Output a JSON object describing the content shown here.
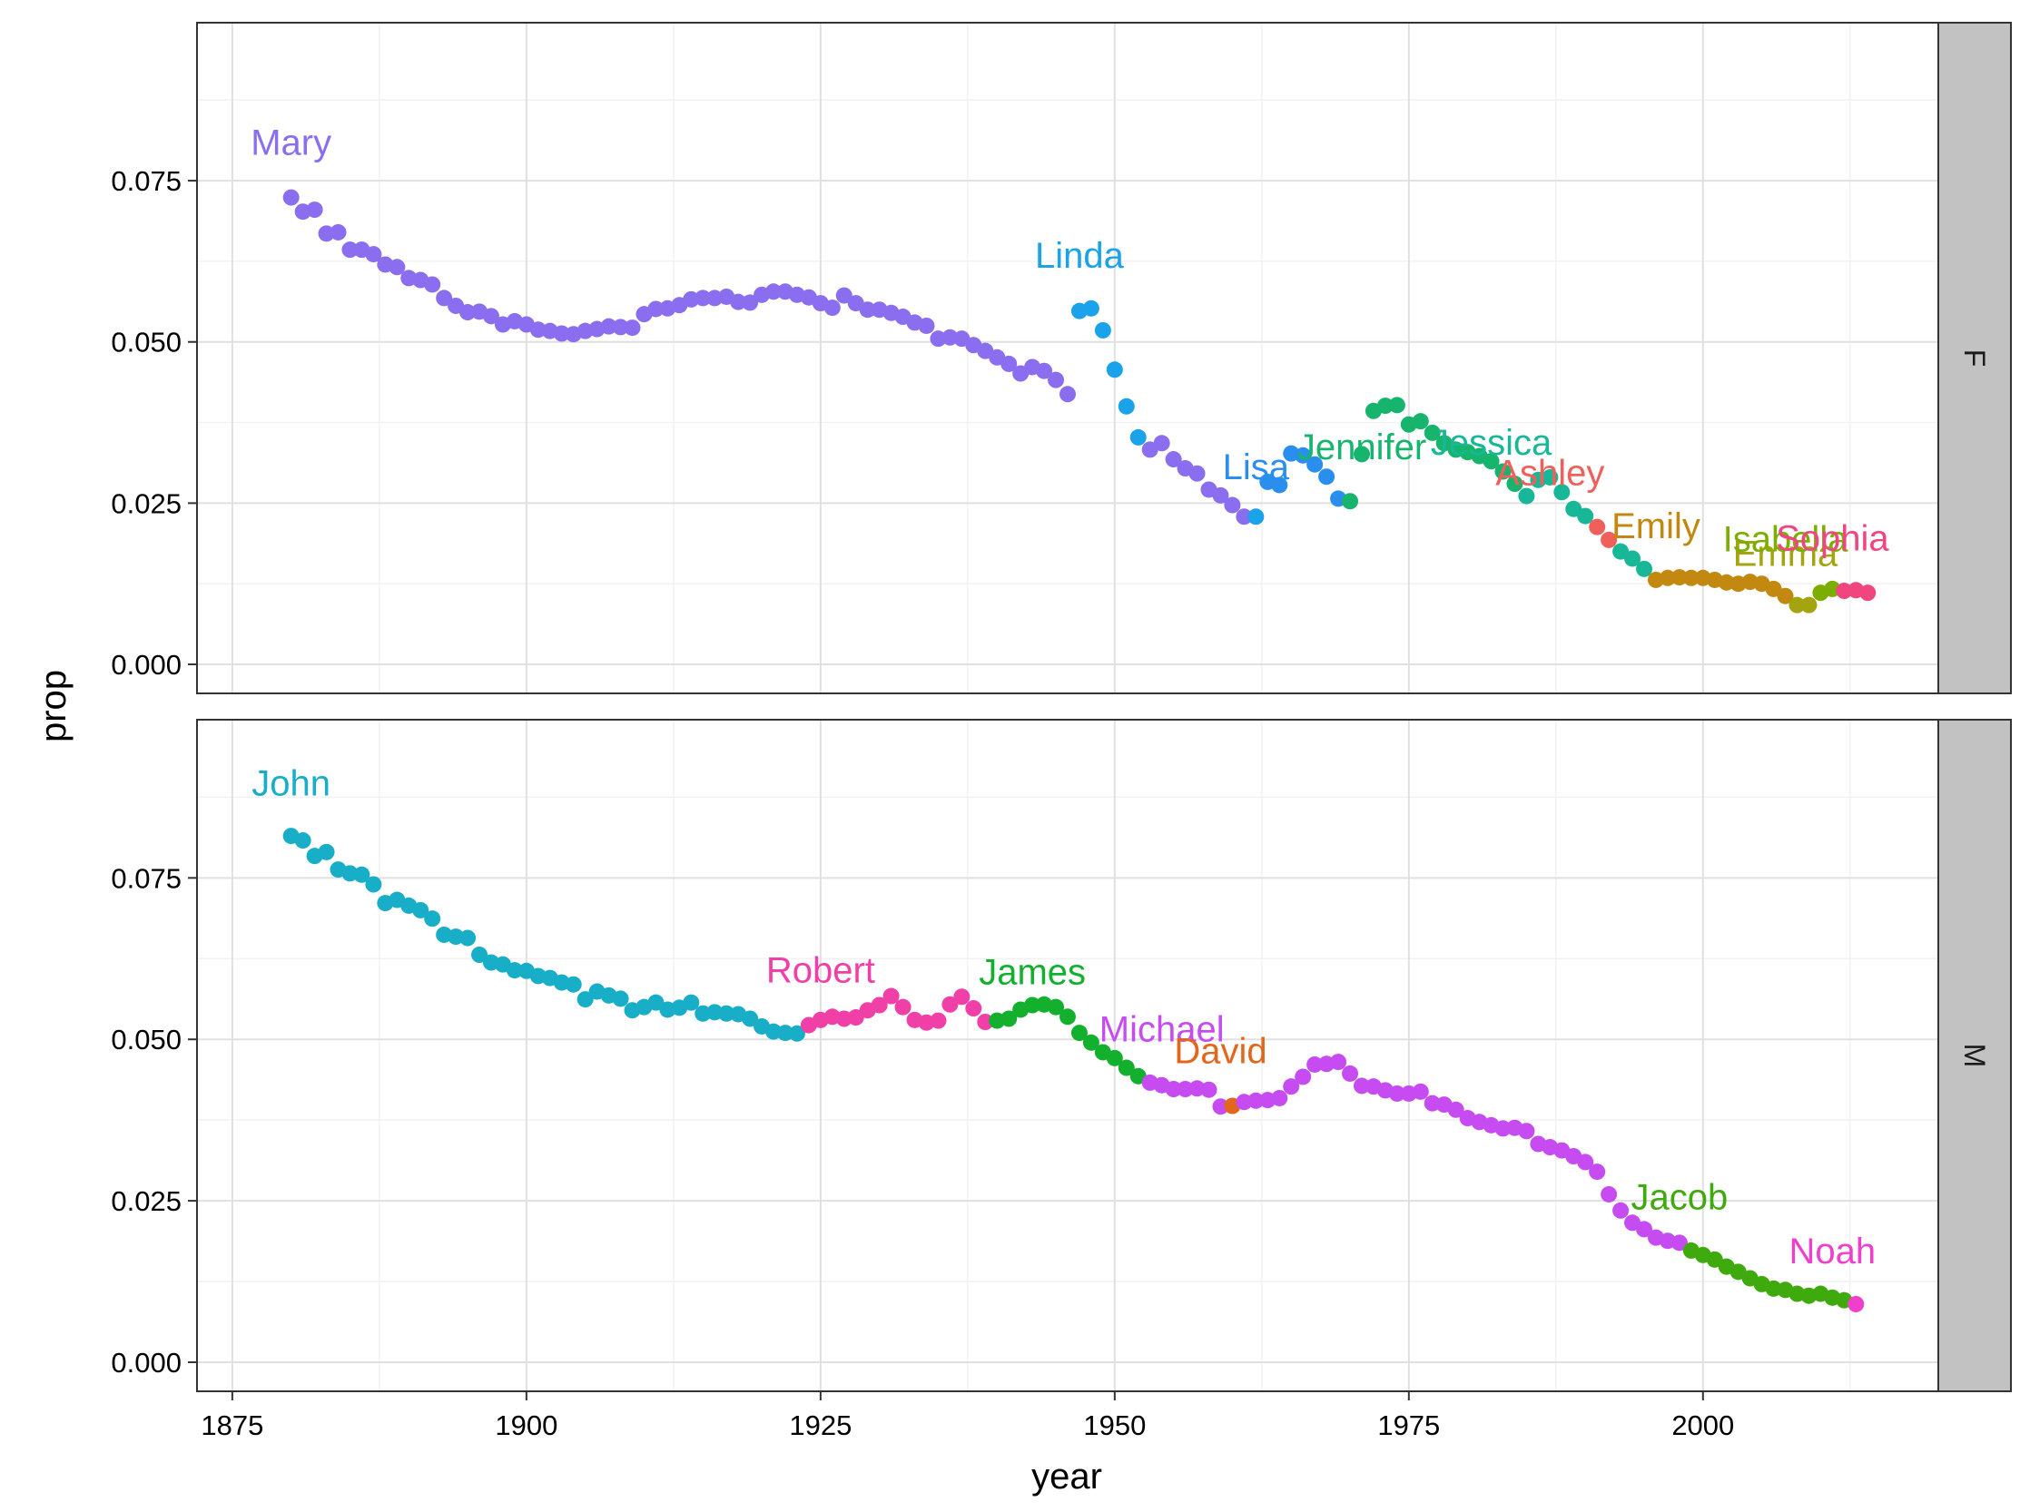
{
  "chart_data": {
    "type": "scatter",
    "xlabel": "year",
    "ylabel": "prop",
    "xlim": [
      1872,
      2020
    ],
    "ylim": [
      -0.0045,
      0.0995
    ],
    "x_ticks": [
      1875,
      1900,
      1925,
      1950,
      1975,
      2000
    ],
    "x_tick_labels": [
      "1875",
      "1900",
      "1925",
      "1950",
      "1975",
      "2000"
    ],
    "y_ticks": [
      0.0,
      0.025,
      0.05,
      0.075
    ],
    "y_tick_labels": [
      "0.000",
      "0.025",
      "0.050",
      "0.075"
    ],
    "grid": true,
    "legend": "none",
    "facets": [
      {
        "strip": "F",
        "series": [
          {
            "name": "Mary",
            "color": "#8B6EF0",
            "label_x": 1880,
            "label_y": 0.079,
            "x": [
              1880,
              1881,
              1882,
              1883,
              1884,
              1885,
              1886,
              1887,
              1888,
              1889,
              1890,
              1891,
              1892,
              1893,
              1894,
              1895,
              1896,
              1897,
              1898,
              1899,
              1900,
              1901,
              1902,
              1903,
              1904,
              1905,
              1906,
              1907,
              1908,
              1909,
              1910,
              1911,
              1912,
              1913,
              1914,
              1915,
              1916,
              1917,
              1918,
              1919,
              1920,
              1921,
              1922,
              1923,
              1924,
              1925,
              1926,
              1927,
              1928,
              1929,
              1930,
              1931,
              1932,
              1933,
              1934,
              1935,
              1936,
              1937,
              1938,
              1939,
              1940,
              1941,
              1942,
              1943,
              1944,
              1945,
              1946
            ],
            "y": [
              0.0724,
              0.0702,
              0.0705,
              0.0668,
              0.067,
              0.0643,
              0.0643,
              0.0636,
              0.062,
              0.0616,
              0.0599,
              0.0596,
              0.0589,
              0.0568,
              0.0556,
              0.0546,
              0.0547,
              0.054,
              0.0527,
              0.0532,
              0.0527,
              0.0519,
              0.0517,
              0.0513,
              0.0512,
              0.0517,
              0.052,
              0.0524,
              0.0523,
              0.0522,
              0.0543,
              0.0551,
              0.0552,
              0.0557,
              0.0566,
              0.0568,
              0.0568,
              0.057,
              0.0562,
              0.0561,
              0.0573,
              0.0578,
              0.0578,
              0.0573,
              0.0569,
              0.056,
              0.0553,
              0.0572,
              0.056,
              0.055,
              0.055,
              0.0545,
              0.0539,
              0.053,
              0.0525,
              0.0505,
              0.0507,
              0.0505,
              0.0495,
              0.0486,
              0.0476,
              0.0466,
              0.0451,
              0.0461,
              0.0455,
              0.0441,
              0.0419
            ]
          },
          {
            "name": "Linda",
            "color": "#1AA2EA",
            "label_x": 1947,
            "label_y": 0.0615,
            "x": [
              1947,
              1948,
              1949,
              1950,
              1951,
              1952
            ],
            "y": [
              0.0548,
              0.0552,
              0.0518,
              0.0457,
              0.04,
              0.0352
            ]
          },
          {
            "name": "Mary",
            "color": "#8B6EF0",
            "label_x": null,
            "label_y": null,
            "x": [
              1953,
              1954,
              1955,
              1956,
              1957,
              1958,
              1959,
              1960,
              1961
            ],
            "y": [
              0.0333,
              0.0343,
              0.0318,
              0.0304,
              0.0296,
              0.0271,
              0.0262,
              0.0247,
              0.0229
            ]
          },
          {
            "name": "Linda",
            "color": "#1AA2EA",
            "label_x": null,
            "label_y": null,
            "x": [
              1962
            ],
            "y": [
              0.0229
            ]
          },
          {
            "name": "Lisa",
            "color": "#2A8EEE",
            "label_x": 1962,
            "label_y": 0.0287,
            "x": [
              1963,
              1964,
              1965,
              1966,
              1967,
              1968,
              1969
            ],
            "y": [
              0.0283,
              0.0278,
              0.0327,
              0.0324,
              0.031,
              0.0291,
              0.0257
            ]
          },
          {
            "name": "Jennifer",
            "color": "#17B46E",
            "label_x": 1971,
            "label_y": 0.0318,
            "x": [
              1970,
              1971,
              1972,
              1973,
              1974,
              1975,
              1976,
              1977,
              1978,
              1979,
              1980,
              1981,
              1982,
              1983,
              1984
            ],
            "y": [
              0.0253,
              0.0326,
              0.0393,
              0.0401,
              0.0402,
              0.0372,
              0.0377,
              0.0359,
              0.0343,
              0.0333,
              0.0329,
              0.0323,
              0.0315,
              0.0299,
              0.028
            ]
          },
          {
            "name": "Jessica",
            "color": "#18B797",
            "label_x": 1982,
            "label_y": 0.0325,
            "x": [
              1985,
              1986,
              1987,
              1988,
              1989,
              1990
            ],
            "y": [
              0.0261,
              0.0286,
              0.029,
              0.0267,
              0.0241,
              0.023
            ]
          },
          {
            "name": "Ashley",
            "color": "#F0605A",
            "label_x": 1987,
            "label_y": 0.0278,
            "x": [
              1991,
              1992
            ],
            "y": [
              0.0213,
              0.0193
            ]
          },
          {
            "name": "Jessica",
            "color": "#18B797",
            "label_x": null,
            "label_y": null,
            "x": [
              1993,
              1994,
              1995
            ],
            "y": [
              0.0175,
              0.0164,
              0.0148
            ]
          },
          {
            "name": "Emily",
            "color": "#C2880F",
            "label_x": 1996,
            "label_y": 0.0196,
            "x": [
              1996,
              1997,
              1998,
              1999,
              2000,
              2001,
              2002,
              2003,
              2004,
              2005,
              2006,
              2007
            ],
            "y": [
              0.0131,
              0.0134,
              0.0135,
              0.0134,
              0.0134,
              0.0131,
              0.0127,
              0.0125,
              0.0128,
              0.0125,
              0.0117,
              0.0106
            ]
          },
          {
            "name": "Emma",
            "color": "#A3A40E",
            "label_x": 2007,
            "label_y": 0.0153,
            "x": [
              2008,
              2009
            ],
            "y": [
              0.0092,
              0.0092
            ]
          },
          {
            "name": "Isabella",
            "color": "#7CAE00",
            "label_x": 2007,
            "label_y": 0.0175,
            "x": [
              2010,
              2011
            ],
            "y": [
              0.0111,
              0.0117
            ]
          },
          {
            "name": "Sophia",
            "color": "#F0457E",
            "label_x": 2011,
            "label_y": 0.0177,
            "x": [
              2012,
              2013,
              2014
            ],
            "y": [
              0.0114,
              0.0115,
              0.0111
            ]
          }
        ]
      },
      {
        "strip": "M",
        "series": [
          {
            "name": "John",
            "color": "#19AEC7",
            "label_x": 1880,
            "label_y": 0.0878,
            "x": [
              1880,
              1881,
              1882,
              1883,
              1884,
              1885,
              1886,
              1887,
              1888,
              1889,
              1890,
              1891,
              1892,
              1893,
              1894,
              1895,
              1896,
              1897,
              1898,
              1899,
              1900,
              1901,
              1902,
              1903,
              1904,
              1905,
              1906,
              1907,
              1908,
              1909,
              1910,
              1911,
              1912,
              1913,
              1914,
              1915,
              1916,
              1917,
              1918,
              1919,
              1920,
              1921,
              1922,
              1923
            ],
            "y": [
              0.0815,
              0.0808,
              0.0784,
              0.079,
              0.0763,
              0.0757,
              0.0755,
              0.074,
              0.0711,
              0.0716,
              0.0707,
              0.07,
              0.0687,
              0.0662,
              0.0659,
              0.0657,
              0.0631,
              0.0619,
              0.0616,
              0.0607,
              0.0606,
              0.0598,
              0.0595,
              0.0588,
              0.0585,
              0.0562,
              0.0574,
              0.0568,
              0.0563,
              0.0545,
              0.055,
              0.0557,
              0.0546,
              0.0549,
              0.0557,
              0.054,
              0.0542,
              0.054,
              0.0539,
              0.0532,
              0.052,
              0.0512,
              0.051,
              0.0509
            ]
          },
          {
            "name": "Robert",
            "color": "#F03FA6",
            "label_x": 1925,
            "label_y": 0.0588,
            "x": [
              1924,
              1925,
              1926,
              1927,
              1928,
              1929,
              1930,
              1931,
              1932,
              1933,
              1934,
              1935,
              1936,
              1937,
              1938,
              1939
            ],
            "y": [
              0.0522,
              0.053,
              0.0535,
              0.0532,
              0.0534,
              0.0545,
              0.0553,
              0.0567,
              0.055,
              0.053,
              0.0526,
              0.0529,
              0.0554,
              0.0566,
              0.0548,
              0.0527
            ]
          },
          {
            "name": "James",
            "color": "#13B02E",
            "label_x": 1943,
            "label_y": 0.0585,
            "x": [
              1940,
              1941,
              1942,
              1943,
              1944,
              1945,
              1946,
              1947,
              1948,
              1949,
              1950,
              1951,
              1952
            ],
            "y": [
              0.0529,
              0.0532,
              0.0546,
              0.0553,
              0.0554,
              0.055,
              0.0535,
              0.051,
              0.0495,
              0.048,
              0.0471,
              0.0456,
              0.0443
            ]
          },
          {
            "name": "Michael",
            "color": "#C64CF2",
            "label_x": 1954,
            "label_y": 0.0497,
            "x": [
              1953,
              1954,
              1955,
              1956,
              1957,
              1958,
              1959
            ],
            "y": [
              0.0433,
              0.0429,
              0.0423,
              0.0423,
              0.0424,
              0.0422,
              0.0396
            ]
          },
          {
            "name": "David",
            "color": "#E2671C",
            "label_x": 1959,
            "label_y": 0.0463,
            "x": [
              1960
            ],
            "y": [
              0.0397
            ]
          },
          {
            "name": "Michael",
            "color": "#C64CF2",
            "label_x": null,
            "label_y": null,
            "x": [
              1961,
              1962,
              1963,
              1964,
              1965,
              1966,
              1967,
              1968,
              1969,
              1970,
              1971,
              1972,
              1973,
              1974,
              1975,
              1976,
              1977,
              1978,
              1979,
              1980,
              1981,
              1982,
              1983,
              1984,
              1985,
              1986,
              1987,
              1988,
              1989,
              1990,
              1991,
              1992,
              1993,
              1994,
              1995,
              1996,
              1997,
              1998
            ],
            "y": [
              0.0403,
              0.0405,
              0.0406,
              0.0409,
              0.0427,
              0.0442,
              0.0461,
              0.0462,
              0.0465,
              0.0447,
              0.0428,
              0.0427,
              0.0421,
              0.0416,
              0.0416,
              0.0419,
              0.0401,
              0.0399,
              0.0391,
              0.0378,
              0.0372,
              0.0367,
              0.0362,
              0.0363,
              0.0358,
              0.0338,
              0.0333,
              0.0328,
              0.0319,
              0.031,
              0.0295,
              0.026,
              0.0235,
              0.0216,
              0.0206,
              0.0193,
              0.0188,
              0.0185
            ]
          },
          {
            "name": "Jacob",
            "color": "#3FAA0E",
            "label_x": 1998,
            "label_y": 0.0237,
            "x": [
              1999,
              2000,
              2001,
              2002,
              2003,
              2004,
              2005,
              2006,
              2007,
              2008,
              2009,
              2010,
              2011,
              2012
            ],
            "y": [
              0.0173,
              0.0166,
              0.0159,
              0.0148,
              0.014,
              0.013,
              0.0121,
              0.0114,
              0.0112,
              0.0106,
              0.0103,
              0.0106,
              0.01,
              0.0096
            ]
          },
          {
            "name": "Noah",
            "color": "#F03FCB",
            "label_x": 2011,
            "label_y": 0.0153,
            "x": [
              2013
            ],
            "y": [
              0.009
            ]
          }
        ]
      }
    ]
  }
}
